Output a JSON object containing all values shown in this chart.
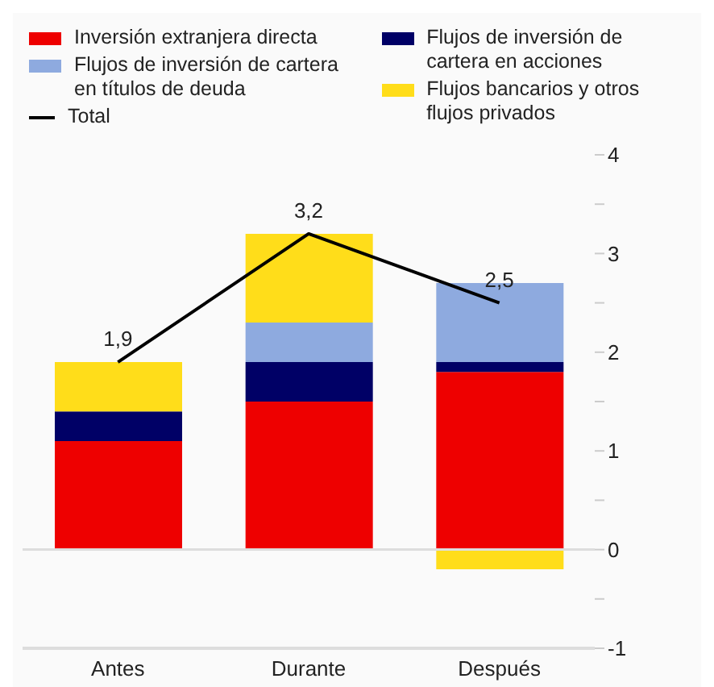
{
  "chart_data": {
    "type": "bar",
    "stacked": true,
    "categories": [
      "Antes",
      "Durante",
      "Después"
    ],
    "series": [
      {
        "name": "Inversión extranjera directa",
        "color": "#ee0000",
        "values": [
          1.1,
          1.5,
          1.8
        ]
      },
      {
        "name": "Flujos de inversión de cartera en acciones",
        "color": "#000066",
        "values": [
          0.3,
          0.4,
          0.1
        ]
      },
      {
        "name": "Flujos de inversión de cartera en títulos de deuda",
        "color": "#8eaadf",
        "values": [
          null,
          0.4,
          0.8
        ]
      },
      {
        "name": "Flujos bancarios y otros flujos privados",
        "color": "#ffdd1a",
        "values": [
          0.5,
          0.9,
          -0.2
        ]
      },
      {
        "name": "Total",
        "type": "line",
        "color": "#000000",
        "values": [
          1.9,
          3.2,
          2.5
        ],
        "value_labels": [
          "1,9",
          "3,2",
          "2,5"
        ]
      }
    ],
    "ylim": [
      -1,
      4
    ],
    "yticks": [
      -1,
      {
        "value": -0.5,
        "label": null
      },
      0,
      {
        "value": 0.5,
        "label": null
      },
      1,
      {
        "value": 1.5,
        "label": null
      },
      2,
      {
        "value": 2.5,
        "label": null
      },
      3,
      {
        "value": 3.5,
        "label": null
      },
      4
    ],
    "ref_lines": [
      {
        "axis": "y",
        "value": 0,
        "color": "#dddddd"
      }
    ],
    "grid": false,
    "legend": "top",
    "marker": "none"
  }
}
